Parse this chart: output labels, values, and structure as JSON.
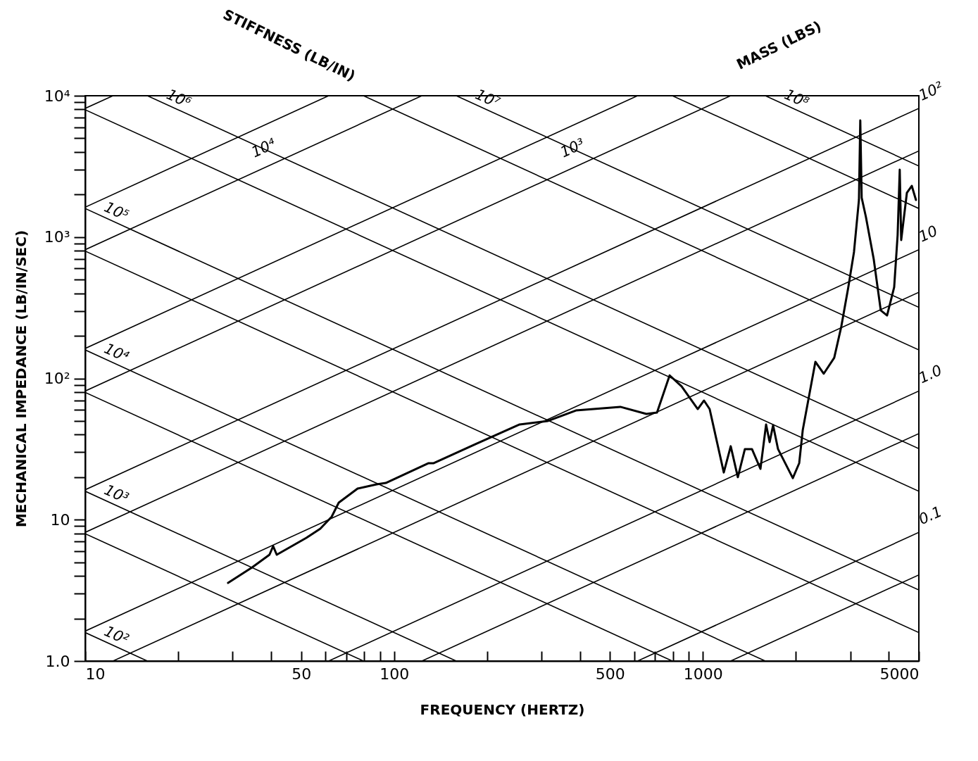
{
  "chart_data": {
    "type": "line",
    "xlabel": "FREQUENCY (HERTZ)",
    "ylabel": "MECHANICAL IMPEDANCE (LB/IN/SEC)",
    "annotations": [
      "STIFFNESS (LB/IN)",
      "MASS (LBS)"
    ],
    "log": "xy",
    "grid": false,
    "legend": false,
    "marker": "none",
    "line_style": "solid",
    "xlim": [
      10,
      5000
    ],
    "xticks": [
      10,
      {
        "value": 20,
        "label": null
      },
      {
        "value": 30,
        "label": null
      },
      {
        "value": 40,
        "label": null
      },
      50,
      {
        "value": 60,
        "label": null
      },
      {
        "value": 70,
        "label": null
      },
      {
        "value": 80,
        "label": null
      },
      {
        "value": 90,
        "label": null
      },
      100,
      {
        "value": 200,
        "label": null
      },
      {
        "value": 300,
        "label": null
      },
      {
        "value": 400,
        "label": null
      },
      500,
      {
        "value": 600,
        "label": null
      },
      {
        "value": 700,
        "label": null
      },
      {
        "value": 800,
        "label": null
      },
      {
        "value": 900,
        "label": null
      },
      1000,
      {
        "value": 2000,
        "label": null
      },
      {
        "value": 3000,
        "label": null
      },
      {
        "value": 4000,
        "label": null
      },
      5000
    ],
    "ylim": [
      1,
      10000
    ],
    "yticks": [
      {
        "value": 1,
        "label": "1.0"
      },
      {
        "value": 2,
        "label": null
      },
      {
        "value": 3,
        "label": null
      },
      {
        "value": 4,
        "label": null
      },
      {
        "value": 5,
        "label": null
      },
      {
        "value": 6,
        "label": null
      },
      {
        "value": 7,
        "label": null
      },
      {
        "value": 8,
        "label": null
      },
      {
        "value": 9,
        "label": null
      },
      10,
      {
        "value": 20,
        "label": null
      },
      {
        "value": 30,
        "label": null
      },
      {
        "value": 40,
        "label": null
      },
      {
        "value": 50,
        "label": null
      },
      {
        "value": 60,
        "label": null
      },
      {
        "value": 70,
        "label": null
      },
      {
        "value": 80,
        "label": null
      },
      {
        "value": 90,
        "label": null
      },
      {
        "value": 100,
        "label": "10²"
      },
      {
        "value": 200,
        "label": null
      },
      {
        "value": 300,
        "label": null
      },
      {
        "value": 400,
        "label": null
      },
      {
        "value": 500,
        "label": null
      },
      {
        "value": 600,
        "label": null
      },
      {
        "value": 700,
        "label": null
      },
      {
        "value": 800,
        "label": null
      },
      {
        "value": 900,
        "label": null
      },
      {
        "value": 1000,
        "label": "10³"
      },
      {
        "value": 2000,
        "label": null
      },
      {
        "value": 3000,
        "label": null
      },
      {
        "value": 4000,
        "label": null
      },
      {
        "value": 5000,
        "label": null
      },
      {
        "value": 6000,
        "label": null
      },
      {
        "value": 7000,
        "label": null
      },
      {
        "value": 8000,
        "label": null
      },
      {
        "value": 9000,
        "label": null
      },
      {
        "value": 10000,
        "label": "10⁴"
      }
    ],
    "series": [
      {
        "color": "#000000",
        "x": [
          29.0,
          34.7,
          39.5,
          40.6,
          41.7,
          52.0,
          57.7,
          62.8,
          66.2,
          76.2,
          87.8,
          94.0,
          129,
          134,
          183,
          255,
          315,
          388,
          540,
          656,
          710,
          780,
          853,
          962,
          1008,
          1051,
          1168,
          1230,
          1297,
          1367,
          1441,
          1535,
          1601,
          1644,
          1687,
          1750,
          1954,
          2049,
          2104,
          2312,
          2461,
          2661,
          2804,
          2955,
          3083,
          3199,
          3231,
          3265,
          3369,
          3571,
          3764,
          3945,
          4160,
          4268,
          4336,
          4383,
          4573,
          4743,
          4893
        ],
        "values": [
          3.57,
          4.6,
          5.65,
          6.49,
          5.65,
          7.44,
          8.64,
          10.5,
          13.2,
          16.6,
          17.8,
          18.2,
          25.1,
          25.1,
          34.2,
          47.2,
          50.0,
          59.3,
          62.9,
          56.0,
          57.3,
          105,
          87.7,
          60.7,
          69.7,
          60.7,
          21.6,
          33.1,
          20.0,
          31.6,
          31.6,
          22.9,
          47.2,
          35.4,
          46.6,
          31.6,
          19.7,
          25.1,
          43.0,
          131,
          108,
          140,
          232,
          442,
          784,
          1832,
          6693,
          1897,
          1390,
          699,
          303,
          279,
          442,
          1032,
          3000,
          952,
          2055,
          2303,
          1832
        ]
      },
      {
        "type": "line",
        "name": "10²",
        "color": "#000000",
        "x": [
          10,
          15.9
        ],
        "values": [
          1.59,
          1
        ]
      },
      {
        "type": "line",
        "color": "#000000",
        "x": [
          10,
          79.6
        ],
        "values": [
          7.96,
          1
        ]
      },
      {
        "type": "line",
        "name": "10³",
        "color": "#000000",
        "x": [
          10,
          159
        ],
        "values": [
          15.9,
          1
        ]
      },
      {
        "type": "line",
        "color": "#000000",
        "x": [
          10,
          796
        ],
        "values": [
          79.6,
          1
        ]
      },
      {
        "type": "line",
        "name": "10⁴",
        "color": "#000000",
        "x": [
          10,
          1592
        ],
        "values": [
          159,
          1
        ]
      },
      {
        "type": "line",
        "color": "#000000",
        "x": [
          10,
          5000
        ],
        "values": [
          796,
          1.59
        ]
      },
      {
        "type": "line",
        "name": "10⁵",
        "color": "#000000",
        "x": [
          10,
          5000
        ],
        "values": [
          1592,
          3.18
        ]
      },
      {
        "type": "line",
        "color": "#000000",
        "x": [
          10,
          5000
        ],
        "values": [
          7958,
          15.9
        ]
      },
      {
        "type": "line",
        "name": "10⁶",
        "color": "#000000",
        "x": [
          15.9,
          5000
        ],
        "values": [
          10000,
          31.8
        ]
      },
      {
        "type": "line",
        "color": "#000000",
        "x": [
          79.6,
          5000
        ],
        "values": [
          10000,
          159
        ]
      },
      {
        "type": "line",
        "name": "10⁷",
        "color": "#000000",
        "x": [
          159,
          5000
        ],
        "values": [
          10000,
          318
        ]
      },
      {
        "type": "line",
        "color": "#000000",
        "x": [
          796,
          5000
        ],
        "values": [
          10000,
          1592
        ]
      },
      {
        "type": "line",
        "name": "10⁸",
        "color": "#000000",
        "x": [
          1592,
          5000
        ],
        "values": [
          10000,
          3183
        ]
      },
      {
        "type": "line",
        "color": "#000000",
        "x": [
          1229,
          5000
        ],
        "values": [
          1,
          4.07
        ]
      },
      {
        "type": "line",
        "name": "0.1",
        "color": "#000000",
        "x": [
          614,
          5000
        ],
        "values": [
          1,
          8.14
        ]
      },
      {
        "type": "line",
        "color": "#000000",
        "x": [
          123,
          5000
        ],
        "values": [
          1,
          40.7
        ]
      },
      {
        "type": "line",
        "name": "1.0",
        "color": "#000000",
        "x": [
          61.4,
          5000
        ],
        "values": [
          1,
          81.4
        ]
      },
      {
        "type": "line",
        "color": "#000000",
        "x": [
          12.3,
          5000
        ],
        "values": [
          1,
          407
        ]
      },
      {
        "type": "line",
        "name": "10",
        "color": "#000000",
        "x": [
          10,
          5000
        ],
        "values": [
          1.63,
          814
        ]
      },
      {
        "type": "line",
        "color": "#000000",
        "x": [
          10,
          5000
        ],
        "values": [
          8.14,
          4070
        ]
      },
      {
        "type": "line",
        "name": "10²",
        "color": "#000000",
        "x": [
          10,
          5000
        ],
        "values": [
          16.3,
          8140
        ]
      },
      {
        "type": "line",
        "color": "#000000",
        "x": [
          10,
          1229
        ],
        "values": [
          81.4,
          10000
        ]
      },
      {
        "type": "line",
        "name": "10³",
        "color": "#000000",
        "x": [
          10,
          614
        ],
        "values": [
          163,
          10000
        ]
      },
      {
        "type": "line",
        "color": "#000000",
        "x": [
          10,
          123
        ],
        "values": [
          814,
          10000
        ]
      },
      {
        "type": "line",
        "name": "10⁴",
        "color": "#000000",
        "x": [
          10,
          61.4
        ],
        "values": [
          1628,
          10000
        ]
      },
      {
        "type": "line",
        "color": "#000000",
        "x": [
          10,
          12.3
        ],
        "values": [
          8140,
          10000
        ]
      }
    ]
  }
}
